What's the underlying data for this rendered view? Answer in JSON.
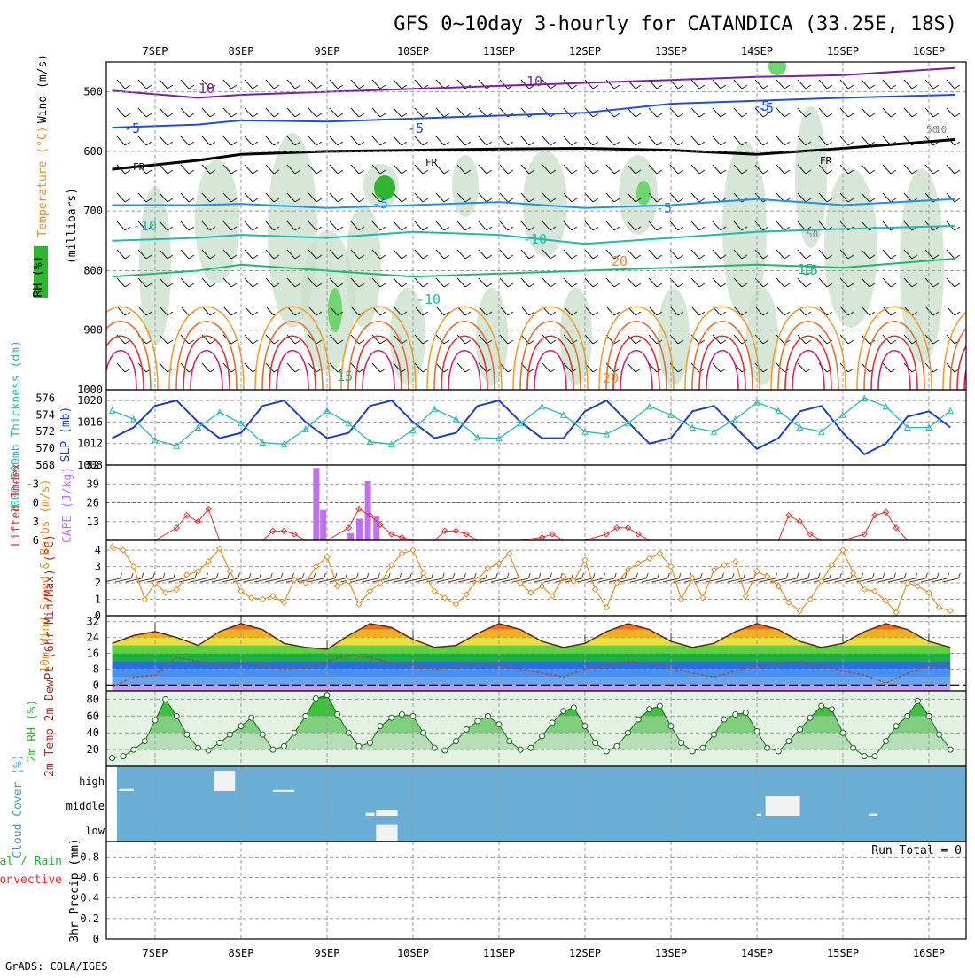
{
  "title": "GFS 0~10day 3-hourly for CATANDICA (33.25E, 18S)",
  "credit": "GrADS: COLA/IGES",
  "colors": {
    "grid": "#9a9a9a",
    "temp_cold": "#7b1fa2",
    "temp_minus5": "#1e4fd8",
    "freezing": "#000000",
    "temp_warm": "#f0a030",
    "rh": "#2fb52f",
    "slp": "#1a3fc4",
    "thickness": "#2ab7b7",
    "lifted_index": "#e03030",
    "cape": "#c070f0",
    "wind10m": "#e0902a",
    "cloud_bg": "#6aaed6"
  },
  "chart_data": [
    {
      "type": "heatmap",
      "name": "upper-air cross section",
      "ylabel": "(millibars)",
      "side_labels": [
        "RH (%)",
        "Temperature (°C)",
        "Wind (m/s)"
      ],
      "yticks": [
        500,
        600,
        700,
        800,
        900,
        1000
      ],
      "ylim": [
        1000,
        450
      ],
      "days": [
        "7SEP",
        "8SEP",
        "9SEP",
        "10SEP",
        "11SEP",
        "12SEP",
        "13SEP",
        "14SEP",
        "15SEP",
        "16SEP"
      ],
      "isotherms": [
        {
          "label": "-10",
          "x": [
            -0.5,
            0.5,
            1.0,
            2.0,
            3.0,
            4.0,
            5.0,
            6.0,
            7.0,
            8.0,
            9.3
          ],
          "p": [
            498,
            510,
            505,
            500,
            495,
            490,
            485,
            480,
            475,
            472,
            460
          ]
        },
        {
          "label": "-5",
          "x": [
            -0.5,
            0.5,
            1.0,
            2.0,
            3.0,
            4.0,
            5.0,
            6.0,
            7.0,
            8.0,
            9.3
          ],
          "p": [
            560,
            555,
            548,
            550,
            545,
            540,
            535,
            520,
            515,
            510,
            505
          ]
        },
        {
          "label": "FR",
          "x": [
            -0.5,
            0.5,
            1.0,
            2.0,
            3.0,
            4.0,
            5.0,
            6.0,
            7.0,
            8.0,
            9.3
          ],
          "p": [
            630,
            615,
            605,
            600,
            598,
            596,
            595,
            598,
            605,
            595,
            580
          ]
        },
        {
          "label": "-5",
          "x": [
            -0.5,
            0.5,
            1.0,
            2.0,
            3.0,
            4.0,
            5.0,
            6.0,
            7.0,
            8.0,
            9.3
          ],
          "p": [
            690,
            690,
            688,
            695,
            690,
            685,
            695,
            690,
            680,
            690,
            680
          ]
        },
        {
          "label": "-10",
          "x": [
            -0.5,
            0.5,
            1.0,
            2.0,
            3.0,
            4.0,
            5.0,
            6.0,
            7.0,
            8.0,
            9.3
          ],
          "p": [
            750,
            745,
            740,
            745,
            735,
            740,
            755,
            745,
            735,
            730,
            725
          ]
        },
        {
          "label": "15",
          "x": [
            -0.5,
            0.5,
            1.0,
            2.0,
            3.0,
            4.0,
            5.0,
            6.0,
            7.0,
            8.0,
            9.3
          ],
          "p": [
            810,
            800,
            790,
            800,
            810,
            805,
            800,
            795,
            790,
            795,
            780
          ]
        }
      ],
      "contour_labels": [
        "-10",
        "-10",
        "-5",
        "-5",
        "-5",
        "-5",
        "FR",
        "FR",
        "FR",
        "-5",
        "-5",
        "-10",
        "-10",
        "-10",
        "15",
        "15",
        "15",
        "20",
        "20",
        "50",
        "50",
        "10"
      ]
    },
    {
      "type": "line",
      "name": "sea level pressure and thickness",
      "ylabel": "SLP (mb)",
      "ylabel2": "1000-500mb Thickness (dm)",
      "yticks": [
        1008,
        1012,
        1016,
        1020
      ],
      "yticks2": [
        568,
        570,
        572,
        574,
        576
      ],
      "ylim": [
        1008,
        1022
      ],
      "ylim2": [
        568,
        577
      ],
      "x": [
        -0.5,
        -0.25,
        0.0,
        0.25,
        0.5,
        0.75,
        1.0,
        1.25,
        1.5,
        1.75,
        2.0,
        2.25,
        2.5,
        2.75,
        3.0,
        3.25,
        3.5,
        3.75,
        4.0,
        4.25,
        4.5,
        4.75,
        5.0,
        5.25,
        5.5,
        5.75,
        6.0,
        6.25,
        6.5,
        6.75,
        7.0,
        7.25,
        7.5,
        7.75,
        8.0,
        8.25,
        8.5,
        8.75,
        9.0,
        9.25
      ],
      "series": [
        {
          "name": "SLP",
          "values": [
            1013,
            1015,
            1019,
            1020,
            1016,
            1013,
            1014,
            1019,
            1020,
            1016,
            1013,
            1014,
            1019,
            1020,
            1016,
            1013,
            1014,
            1019,
            1020,
            1016,
            1013,
            1013,
            1018,
            1020,
            1016,
            1012,
            1013,
            1018,
            1019,
            1015,
            1011,
            1013,
            1018,
            1019,
            1014,
            1010,
            1012,
            1017,
            1018,
            1015
          ]
        },
        {
          "name": "Thickness",
          "values": [
            574.5,
            573.5,
            571,
            570.3,
            572.5,
            574.3,
            573,
            570.7,
            570.5,
            572.3,
            574.5,
            573,
            570.8,
            570.5,
            572.2,
            574.7,
            573.5,
            571.3,
            571.2,
            573,
            575,
            574,
            572,
            571.7,
            573,
            575,
            574,
            572.5,
            572,
            573.5,
            575.5,
            574.5,
            572.5,
            572,
            574,
            576,
            575,
            572.5,
            572.5,
            574.5
          ]
        }
      ]
    },
    {
      "type": "bar",
      "name": "lifted index and CAPE",
      "ylabel": "Lifted Index",
      "ylabel2": "CAPE (J/kg)",
      "li_ticks": [
        -3,
        0,
        3,
        6
      ],
      "cape_ticks": [
        13,
        26,
        39,
        52
      ],
      "cape_ylim": [
        0,
        52
      ],
      "cape_x": [
        1.87,
        1.95,
        2.27,
        2.37,
        2.47,
        2.57
      ],
      "cape_values": [
        50,
        21,
        5,
        15,
        41,
        17
      ],
      "li_x": [
        -0.5,
        -0.25,
        0.0,
        0.25,
        0.37,
        0.5,
        0.62,
        0.75,
        1.0,
        1.25,
        1.37,
        1.5,
        1.62,
        1.75,
        2.0,
        2.25,
        2.37,
        2.5,
        2.62,
        2.75,
        2.87,
        3.0,
        3.25,
        3.37,
        3.5,
        3.62,
        3.75,
        4.0,
        4.25,
        4.5,
        4.62,
        4.75,
        5.0,
        5.25,
        5.37,
        5.5,
        5.62,
        5.75,
        6.0,
        6.25,
        6.5,
        6.75,
        7.0,
        7.25,
        7.37,
        7.5,
        7.62,
        7.75,
        8.0,
        8.25,
        8.37,
        8.5,
        8.62,
        8.75,
        9.0,
        9.25
      ],
      "li_values": [
        6,
        6,
        6,
        4,
        2,
        3,
        1,
        6,
        6,
        6,
        4.5,
        4.5,
        5,
        6,
        6,
        4,
        1,
        2,
        3.5,
        5,
        5.5,
        6,
        6,
        4.5,
        4.5,
        5,
        6,
        6,
        6,
        5.5,
        5,
        6,
        6,
        5,
        4,
        4,
        5,
        6,
        6,
        6,
        6,
        6,
        6,
        6,
        2,
        3,
        5,
        6,
        6,
        5,
        2,
        1.5,
        4,
        6,
        6,
        6
      ]
    },
    {
      "type": "line",
      "name": "10m wind speed",
      "ylabel": "10m Wind Speed & Barbs (m/s)",
      "yticks": [
        0,
        1,
        2,
        3,
        4
      ],
      "ylim": [
        0,
        4.6
      ],
      "x": [
        -0.5,
        -0.37,
        -0.25,
        -0.12,
        0.0,
        0.12,
        0.25,
        0.37,
        0.5,
        0.62,
        0.75,
        0.87,
        1.0,
        1.12,
        1.25,
        1.37,
        1.5,
        1.62,
        1.75,
        1.87,
        2.0,
        2.12,
        2.25,
        2.37,
        2.5,
        2.62,
        2.75,
        2.87,
        3.0,
        3.12,
        3.25,
        3.37,
        3.5,
        3.62,
        3.75,
        3.87,
        4.0,
        4.12,
        4.25,
        4.37,
        4.5,
        4.62,
        4.75,
        4.87,
        5.0,
        5.12,
        5.25,
        5.37,
        5.5,
        5.62,
        5.75,
        5.87,
        6.0,
        6.12,
        6.25,
        6.37,
        6.5,
        6.62,
        6.75,
        6.87,
        7.0,
        7.12,
        7.25,
        7.37,
        7.5,
        7.62,
        7.75,
        7.87,
        8.0,
        8.12,
        8.25,
        8.37,
        8.5,
        8.62,
        8.75,
        8.87,
        9.0,
        9.12,
        9.25
      ],
      "values": [
        4.2,
        4.0,
        3.0,
        1.0,
        2.0,
        1.4,
        1.6,
        2.5,
        2.7,
        3.3,
        4.1,
        2.7,
        1.5,
        1.1,
        1.0,
        1.2,
        0.8,
        2.2,
        2.0,
        3.0,
        3.6,
        1.8,
        2.1,
        0.7,
        1.5,
        2.0,
        3.1,
        3.8,
        4.0,
        2.6,
        1.5,
        1.1,
        0.7,
        1.3,
        2.2,
        2.9,
        3.2,
        3.8,
        2.0,
        1.4,
        1.8,
        1.2,
        2.4,
        2.1,
        3.4,
        1.6,
        0.5,
        2.0,
        2.8,
        3.2,
        3.5,
        3.8,
        3.0,
        1.0,
        2.3,
        1.1,
        2.8,
        3.1,
        3.3,
        1.2,
        2.7,
        2.4,
        1.8,
        0.8,
        0.3,
        1.0,
        2.1,
        3.1,
        4.0,
        2.6,
        1.6,
        1.5,
        0.9,
        0.2,
        2.0,
        1.8,
        1.4,
        0.5,
        0.3
      ]
    },
    {
      "type": "line",
      "name": "2m temperature and dewpoint",
      "ylabel": "2m Temp 2m DewPt (6hr Min/Max) (°C)",
      "yticks": [
        0,
        8,
        16,
        24,
        32
      ],
      "ylim": [
        -3,
        35
      ],
      "x": [
        -0.5,
        -0.25,
        0.0,
        0.25,
        0.5,
        0.75,
        1.0,
        1.25,
        1.5,
        1.75,
        2.0,
        2.25,
        2.5,
        2.75,
        3.0,
        3.25,
        3.5,
        3.75,
        4.0,
        4.25,
        4.5,
        4.75,
        5.0,
        5.25,
        5.5,
        5.75,
        6.0,
        6.25,
        6.5,
        6.75,
        7.0,
        7.25,
        7.5,
        7.75,
        8.0,
        8.25,
        8.5,
        8.75,
        9.0,
        9.25
      ],
      "series": [
        {
          "name": "2m Temp",
          "values": [
            21,
            25,
            27,
            24,
            20,
            27,
            31,
            28,
            21,
            19,
            18,
            25,
            31,
            29,
            23,
            19,
            20,
            26,
            31,
            28,
            22,
            19,
            21,
            27,
            31,
            28,
            22,
            19,
            21,
            27,
            31,
            28,
            22,
            19,
            21,
            27,
            31,
            28,
            22,
            19
          ]
        },
        {
          "name": "2m DewPt",
          "values": [
            -1,
            4,
            5,
            14,
            12,
            10,
            11,
            10,
            8,
            9,
            12,
            15,
            14,
            11,
            10,
            8,
            9,
            11,
            10,
            8,
            6,
            4,
            8,
            10,
            12,
            11,
            9,
            6,
            4,
            7,
            10,
            11,
            12,
            10,
            7,
            5,
            1,
            6,
            10,
            11
          ]
        }
      ]
    },
    {
      "type": "area",
      "name": "2m relative humidity",
      "ylabel": "2m RH (%)",
      "yticks": [
        20,
        40,
        60,
        80
      ],
      "ylim": [
        0,
        90
      ],
      "x": [
        -0.5,
        -0.37,
        -0.25,
        -0.12,
        0.0,
        0.12,
        0.25,
        0.37,
        0.5,
        0.62,
        0.75,
        0.87,
        1.0,
        1.12,
        1.25,
        1.37,
        1.5,
        1.62,
        1.75,
        1.87,
        2.0,
        2.12,
        2.25,
        2.37,
        2.5,
        2.62,
        2.75,
        2.87,
        3.0,
        3.12,
        3.25,
        3.37,
        3.5,
        3.62,
        3.75,
        3.87,
        4.0,
        4.12,
        4.25,
        4.37,
        4.5,
        4.62,
        4.75,
        4.87,
        5.0,
        5.12,
        5.25,
        5.37,
        5.5,
        5.62,
        5.75,
        5.87,
        6.0,
        6.12,
        6.25,
        6.37,
        6.5,
        6.62,
        6.75,
        6.87,
        7.0,
        7.12,
        7.25,
        7.37,
        7.5,
        7.62,
        7.75,
        7.87,
        8.0,
        8.12,
        8.25,
        8.37,
        8.5,
        8.62,
        8.75,
        8.87,
        9.0,
        9.12,
        9.25
      ],
      "values": [
        10,
        12,
        20,
        30,
        55,
        80,
        60,
        38,
        22,
        19,
        28,
        38,
        48,
        58,
        38,
        20,
        24,
        40,
        60,
        81,
        85,
        62,
        40,
        24,
        28,
        48,
        58,
        62,
        60,
        40,
        22,
        19,
        30,
        44,
        54,
        60,
        50,
        30,
        20,
        22,
        36,
        52,
        66,
        70,
        48,
        28,
        18,
        24,
        40,
        56,
        68,
        72,
        48,
        28,
        18,
        22,
        38,
        56,
        62,
        64,
        42,
        22,
        18,
        30,
        44,
        58,
        72,
        68,
        40,
        22,
        12,
        12,
        30,
        48,
        60,
        78,
        60,
        38,
        20
      ]
    },
    {
      "type": "table",
      "name": "cloud cover",
      "ylabel": "Cloud Cover (%)",
      "levels": [
        "high",
        "middle",
        "low"
      ],
      "cells": [
        {
          "level": "high",
          "x0": -0.42,
          "x1": -0.25,
          "value": 10
        },
        {
          "level": "high",
          "x0": 0.68,
          "x1": 0.93,
          "value": 100
        },
        {
          "level": "high",
          "x0": 1.37,
          "x1": 1.62,
          "value": 5
        },
        {
          "level": "middle",
          "x0": 2.45,
          "x1": 2.55,
          "value": 15
        },
        {
          "level": "middle",
          "x0": 2.57,
          "x1": 2.82,
          "value": 30
        },
        {
          "level": "low",
          "x0": 2.57,
          "x1": 2.82,
          "value": 80
        },
        {
          "level": "middle",
          "x0": 7.0,
          "x1": 7.05,
          "value": 10
        },
        {
          "level": "middle",
          "x0": 7.1,
          "x1": 7.5,
          "value": 100
        },
        {
          "level": "middle",
          "x0": 8.3,
          "x1": 8.4,
          "value": 10
        }
      ]
    },
    {
      "type": "bar",
      "name": "3hr precipitation",
      "ylabel": "3hr Precip (mm)",
      "side_labels": [
        "Total / Rain",
        "Convective"
      ],
      "yticks": [
        0,
        0.2,
        0.4,
        0.6,
        0.8
      ],
      "ylim": [
        0,
        0.95
      ],
      "run_total_label": "Run Total = 0",
      "values": []
    }
  ]
}
